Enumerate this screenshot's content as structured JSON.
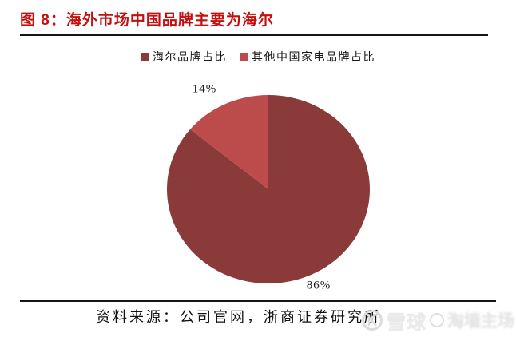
{
  "figure": {
    "title": "图 8：海外市场中国品牌主要为海尔",
    "source": "资料来源：公司官网，浙商证券研究所"
  },
  "legend": [
    {
      "label": "海尔品牌占比",
      "color": "#8b3a3a"
    },
    {
      "label": "其他中国家电品牌占比",
      "color": "#bc4b4b"
    }
  ],
  "chart_data": {
    "type": "pie",
    "title": "海外市场中国品牌主要为海尔",
    "categories": [
      "海尔品牌占比",
      "其他中国家电品牌占比"
    ],
    "values": [
      86,
      14
    ],
    "labels": [
      "86%",
      "14%"
    ],
    "colors": [
      "#8b3a3a",
      "#bc4b4b"
    ],
    "start_angle": "12-o-clock",
    "direction": "clockwise",
    "legend_position": "top"
  },
  "watermark": {
    "brand": "雪球",
    "user": "淘墙主场"
  },
  "colors": {
    "title_red": "#c40f0f",
    "rule_black": "#141414",
    "slice_dark": "#8b3a3a",
    "slice_light": "#bc4b4b"
  }
}
